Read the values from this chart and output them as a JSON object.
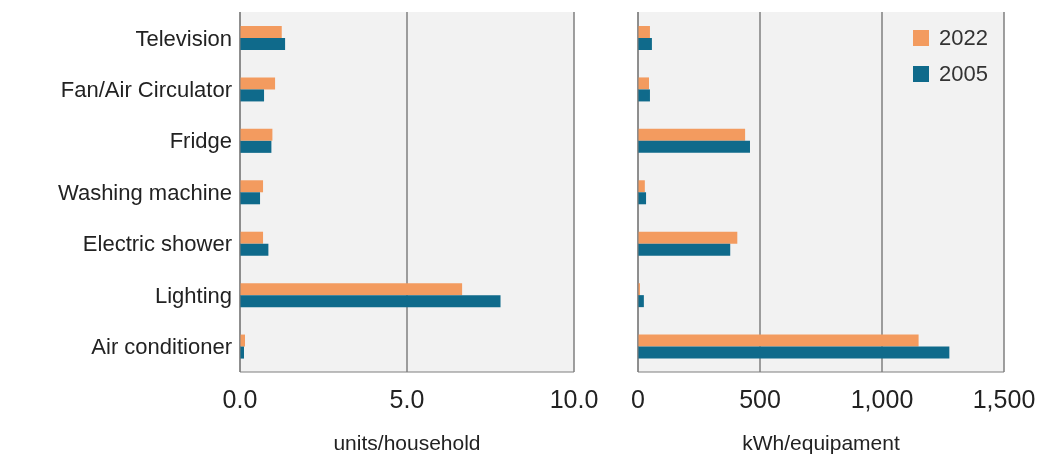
{
  "chart_data": [
    {
      "type": "bar",
      "orientation": "horizontal",
      "categories": [
        "Television",
        "Fan/Air Circulator",
        "Fridge",
        "Washing machine",
        "Electric shower",
        "Lighting",
        "Air conditioner"
      ],
      "series": [
        {
          "color": "#f39b5f",
          "values": [
            1.25,
            1.05,
            0.97,
            0.69,
            0.69,
            6.65,
            0.15
          ]
        },
        {
          "color": "#0f6a8b",
          "values": [
            1.35,
            0.72,
            0.94,
            0.6,
            0.85,
            7.8,
            0.12
          ]
        }
      ],
      "xlim": [
        0,
        10
      ],
      "xticks": [
        {
          "value": 0,
          "label": "0.0"
        },
        {
          "value": 5,
          "label": "5.0"
        },
        {
          "value": 10,
          "label": "10.0"
        }
      ],
      "xlabel": "units/household",
      "grid": "x"
    },
    {
      "type": "bar",
      "orientation": "horizontal",
      "categories": [
        null,
        null,
        null,
        null,
        null,
        null,
        null
      ],
      "series": [
        {
          "name": "2022",
          "color": "#f39b5f",
          "values": [
            49,
            45,
            439,
            28,
            407,
            8,
            1150
          ]
        },
        {
          "name": "2005",
          "color": "#0f6a8b",
          "values": [
            57,
            49,
            459,
            33,
            378,
            24,
            1276
          ]
        }
      ],
      "xlim": [
        0,
        1500
      ],
      "xticks": [
        0,
        500,
        {
          "value": 1000,
          "label": "1,000"
        },
        {
          "value": 1500,
          "label": "1,500"
        }
      ],
      "xlabel": "kWh/equipament",
      "grid": "x",
      "legend": "top right"
    }
  ]
}
